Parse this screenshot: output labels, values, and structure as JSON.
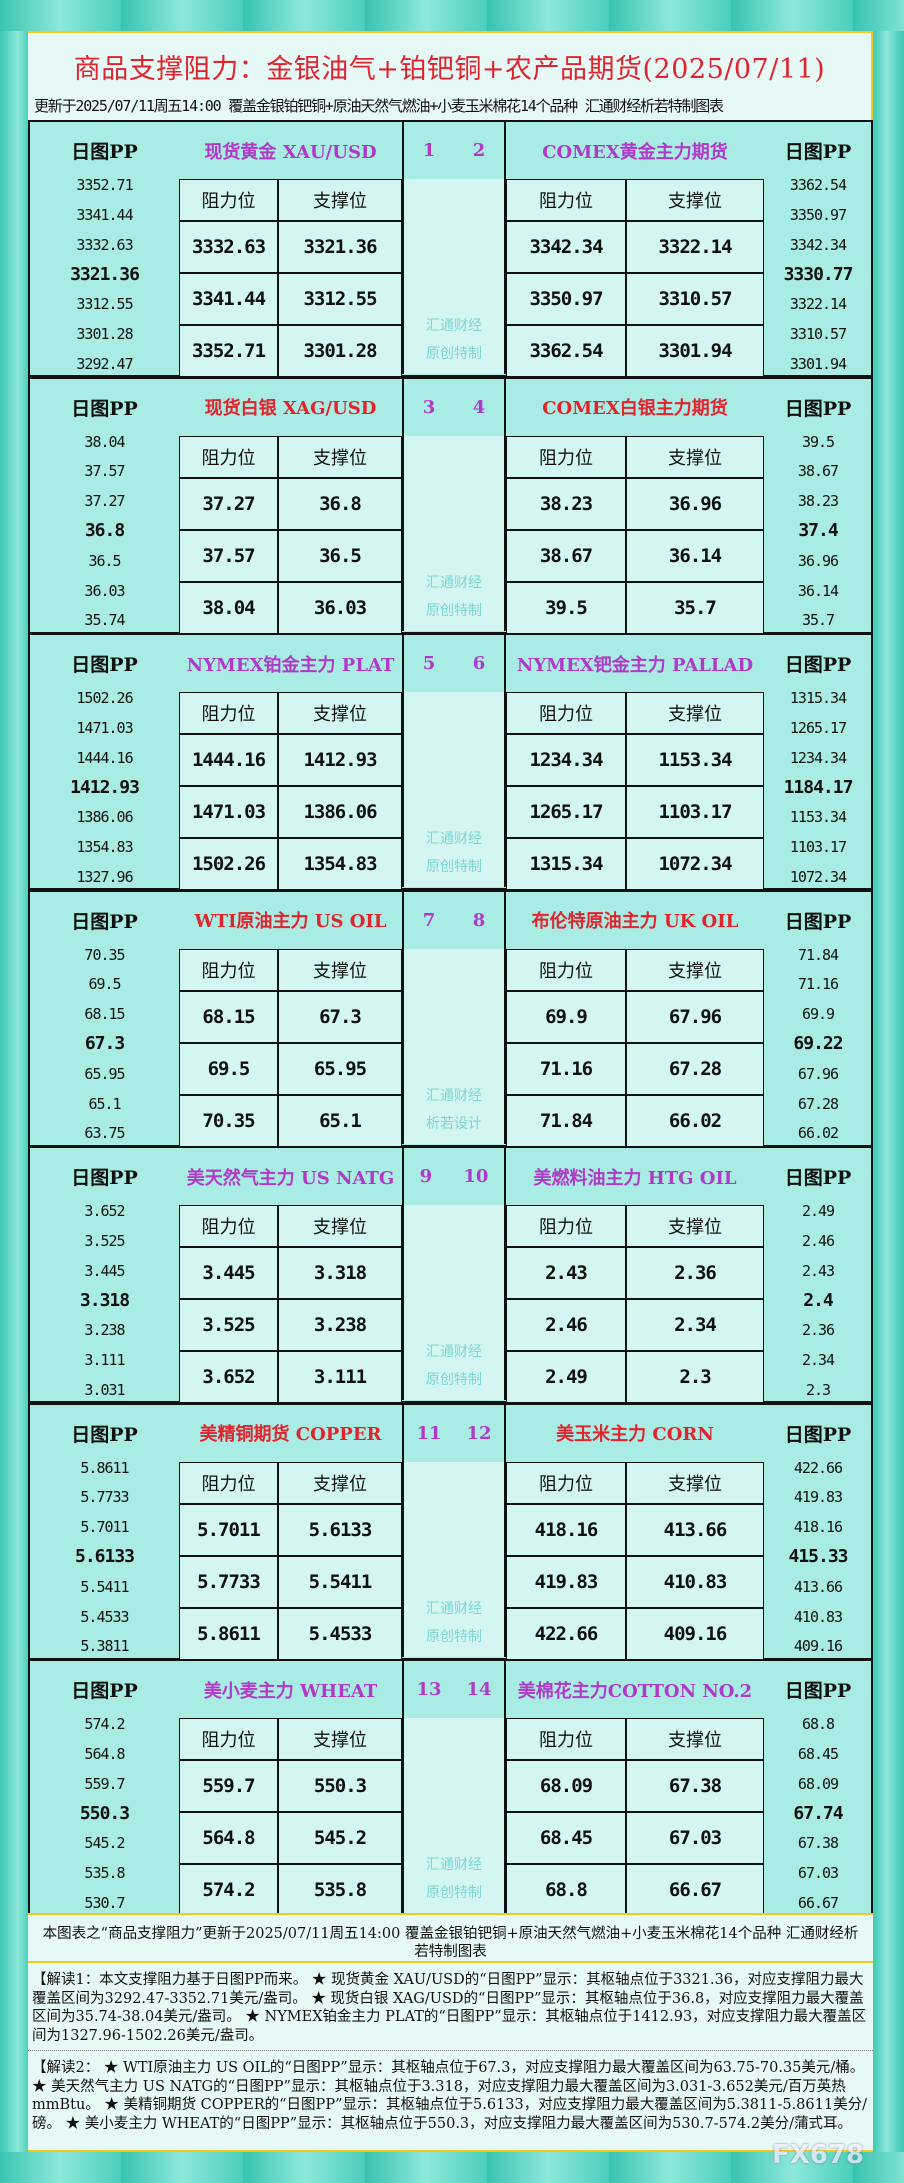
{
  "title": "商品支撑阻力：金银油气+铂钯铜+农产品期货(2025/07/11)",
  "subtitle": "更新于2025/07/11周五14:00 覆盖金银铂钯铜+原油天然气燃油+小麦玉米棉花14个品种 汇通财经析若特制图表",
  "labels": {
    "pp": "日图PP",
    "resistance": "阻力位",
    "support": "支撑位"
  },
  "colors": {
    "title": "#e0242e",
    "purple": "#b03ac8",
    "red": "#e0242e",
    "header_bg": "#a8ece3",
    "cell_bg": "#d3f6f2"
  },
  "blocks": [
    {
      "nums": [
        "1",
        "2"
      ],
      "watermark": [
        "汇通财经",
        "原创特制"
      ],
      "color": "purple",
      "left": {
        "name": "现货黄金 XAU/USD",
        "pp": [
          "3352.71",
          "3341.44",
          "3332.63",
          "3321.36",
          "3312.55",
          "3301.28",
          "3292.47"
        ],
        "rows": [
          [
            "3332.63",
            "3321.36"
          ],
          [
            "3341.44",
            "3312.55"
          ],
          [
            "3352.71",
            "3301.28"
          ]
        ]
      },
      "right": {
        "name": "COMEX黄金主力期货",
        "pp": [
          "3362.54",
          "3350.97",
          "3342.34",
          "3330.77",
          "3322.14",
          "3310.57",
          "3301.94"
        ],
        "rows": [
          [
            "3342.34",
            "3322.14"
          ],
          [
            "3350.97",
            "3310.57"
          ],
          [
            "3362.54",
            "3301.94"
          ]
        ]
      }
    },
    {
      "nums": [
        "3",
        "4"
      ],
      "watermark": [
        "汇通财经",
        "原创特制"
      ],
      "color": "red",
      "left": {
        "name": "现货白银 XAG/USD",
        "pp": [
          "38.04",
          "37.57",
          "37.27",
          "36.8",
          "36.5",
          "36.03",
          "35.74"
        ],
        "rows": [
          [
            "37.27",
            "36.8"
          ],
          [
            "37.57",
            "36.5"
          ],
          [
            "38.04",
            "36.03"
          ]
        ]
      },
      "right": {
        "name": "COMEX白银主力期货",
        "pp": [
          "39.5",
          "38.67",
          "38.23",
          "37.4",
          "36.96",
          "36.14",
          "35.7"
        ],
        "rows": [
          [
            "38.23",
            "36.96"
          ],
          [
            "38.67",
            "36.14"
          ],
          [
            "39.5",
            "35.7"
          ]
        ]
      }
    },
    {
      "nums": [
        "5",
        "6"
      ],
      "watermark": [
        "汇通财经",
        "原创特制"
      ],
      "color": "purple",
      "left": {
        "name": "NYMEX铂金主力 PLAT",
        "pp": [
          "1502.26",
          "1471.03",
          "1444.16",
          "1412.93",
          "1386.06",
          "1354.83",
          "1327.96"
        ],
        "rows": [
          [
            "1444.16",
            "1412.93"
          ],
          [
            "1471.03",
            "1386.06"
          ],
          [
            "1502.26",
            "1354.83"
          ]
        ]
      },
      "right": {
        "name": "NYMEX钯金主力 PALLAD",
        "pp": [
          "1315.34",
          "1265.17",
          "1234.34",
          "1184.17",
          "1153.34",
          "1103.17",
          "1072.34"
        ],
        "rows": [
          [
            "1234.34",
            "1153.34"
          ],
          [
            "1265.17",
            "1103.17"
          ],
          [
            "1315.34",
            "1072.34"
          ]
        ]
      }
    },
    {
      "nums": [
        "7",
        "8"
      ],
      "watermark": [
        "汇通财经",
        "析若设计"
      ],
      "color": "red",
      "left": {
        "name": "WTI原油主力 US OIL",
        "pp": [
          "70.35",
          "69.5",
          "68.15",
          "67.3",
          "65.95",
          "65.1",
          "63.75"
        ],
        "rows": [
          [
            "68.15",
            "67.3"
          ],
          [
            "69.5",
            "65.95"
          ],
          [
            "70.35",
            "65.1"
          ]
        ]
      },
      "right": {
        "name": "布伦特原油主力 UK OIL",
        "pp": [
          "71.84",
          "71.16",
          "69.9",
          "69.22",
          "67.96",
          "67.28",
          "66.02"
        ],
        "rows": [
          [
            "69.9",
            "67.96"
          ],
          [
            "71.16",
            "67.28"
          ],
          [
            "71.84",
            "66.02"
          ]
        ]
      }
    },
    {
      "nums": [
        "9",
        "10"
      ],
      "watermark": [
        "汇通财经",
        "原创特制"
      ],
      "color": "purple",
      "left": {
        "name": "美天然气主力 US NATG",
        "pp": [
          "3.652",
          "3.525",
          "3.445",
          "3.318",
          "3.238",
          "3.111",
          "3.031"
        ],
        "rows": [
          [
            "3.445",
            "3.318"
          ],
          [
            "3.525",
            "3.238"
          ],
          [
            "3.652",
            "3.111"
          ]
        ]
      },
      "right": {
        "name": "美燃料油主力 HTG OIL",
        "pp": [
          "2.49",
          "2.46",
          "2.43",
          "2.4",
          "2.36",
          "2.34",
          "2.3"
        ],
        "rows": [
          [
            "2.43",
            "2.36"
          ],
          [
            "2.46",
            "2.34"
          ],
          [
            "2.49",
            "2.3"
          ]
        ]
      }
    },
    {
      "nums": [
        "11",
        "12"
      ],
      "watermark": [
        "汇通财经",
        "原创特制"
      ],
      "color": "red",
      "left": {
        "name": "美精铜期货 COPPER",
        "pp": [
          "5.8611",
          "5.7733",
          "5.7011",
          "5.6133",
          "5.5411",
          "5.4533",
          "5.3811"
        ],
        "rows": [
          [
            "5.7011",
            "5.6133"
          ],
          [
            "5.7733",
            "5.5411"
          ],
          [
            "5.8611",
            "5.4533"
          ]
        ]
      },
      "right": {
        "name": "美玉米主力 CORN",
        "pp": [
          "422.66",
          "419.83",
          "418.16",
          "415.33",
          "413.66",
          "410.83",
          "409.16"
        ],
        "rows": [
          [
            "418.16",
            "413.66"
          ],
          [
            "419.83",
            "410.83"
          ],
          [
            "422.66",
            "409.16"
          ]
        ]
      }
    },
    {
      "nums": [
        "13",
        "14"
      ],
      "watermark": [
        "汇通财经",
        "原创特制"
      ],
      "color": "purple",
      "left": {
        "name": "美小麦主力 WHEAT",
        "pp": [
          "574.2",
          "564.8",
          "559.7",
          "550.3",
          "545.2",
          "535.8",
          "530.7"
        ],
        "rows": [
          [
            "559.7",
            "550.3"
          ],
          [
            "564.8",
            "545.2"
          ],
          [
            "574.2",
            "535.8"
          ]
        ]
      },
      "right": {
        "name": "美棉花主力COTTON NO.2",
        "pp": [
          "68.8",
          "68.45",
          "68.09",
          "67.74",
          "67.38",
          "67.03",
          "66.67"
        ],
        "rows": [
          [
            "68.09",
            "67.38"
          ],
          [
            "68.45",
            "67.03"
          ],
          [
            "68.8",
            "66.67"
          ]
        ]
      }
    }
  ],
  "footer_note": "本图表之“商品支撑阻力”更新于2025/07/11周五14:00 覆盖金银铂钯铜+原油天然气燃油+小麦玉米棉花14个品种 汇通财经析若特制图表",
  "interpretation_1": "【解读1：本文支撑阻力基于日图PP而来。 ★ 现货黄金 XAU/USD的“日图PP”显示：其枢轴点位于3321.36，对应支撑阻力最大覆盖区间为3292.47-3352.71美元/盎司。 ★ 现货白银 XAG/USD的“日图PP”显示：其枢轴点位于36.8，对应支撑阻力最大覆盖区间为35.74-38.04美元/盎司。 ★ NYMEX铂金主力 PLAT的“日图PP”显示：其枢轴点位于1412.93，对应支撑阻力最大覆盖区间为1327.96-1502.26美元/盎司。",
  "interpretation_2": "【解读2： ★ WTI原油主力 US OIL的“日图PP”显示：其枢轴点位于67.3，对应支撑阻力最大覆盖区间为63.75-70.35美元/桶。 ★ 美天然气主力 US NATG的“日图PP”显示：其枢轴点位于3.318，对应支撑阻力最大覆盖区间为3.031-3.652美元/百万英热mmBtu。 ★ 美精铜期货 COPPER的“日图PP”显示：其枢轴点位于5.6133，对应支撑阻力最大覆盖区间为5.3811-5.8611美分/磅。 ★ 美小麦主力 WHEAT的“日图PP”显示：其枢轴点位于550.3，对应支撑阻力最大覆盖区间为530.7-574.2美分/蒲式耳。",
  "logo": "FX678"
}
